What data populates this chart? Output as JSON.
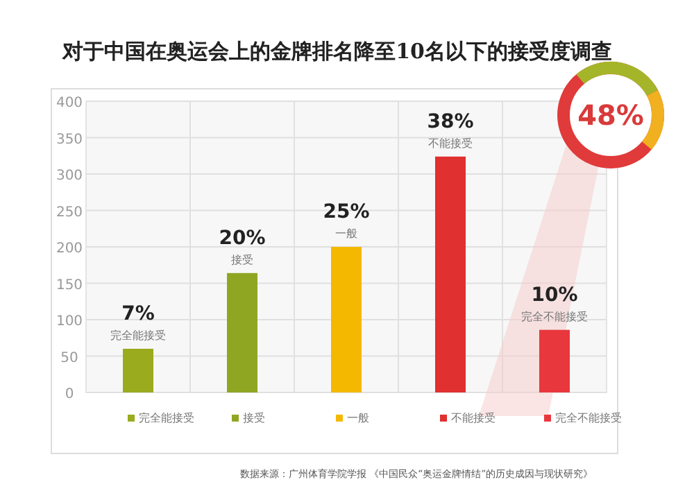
{
  "chart_data": {
    "type": "bar",
    "title": "对于中国在奥运会上的金牌排名降至10名以下的接受度调查",
    "categories": [
      null,
      null,
      null,
      null,
      null
    ],
    "series": [
      {
        "name": "完全能接受",
        "color": "#9aab1e",
        "values": [
          60,
          null,
          null,
          null,
          null
        ]
      },
      {
        "name": "接受",
        "color": "#8fa622",
        "values": [
          null,
          164,
          null,
          null,
          null
        ]
      },
      {
        "name": "一般",
        "color": "#f5b800",
        "values": [
          null,
          null,
          200,
          null,
          null
        ]
      },
      {
        "name": "不能接受",
        "color": "#e03030",
        "values": [
          null,
          null,
          null,
          324,
          null
        ]
      },
      {
        "name": "完全不能接受",
        "color": "#e8383d",
        "values": [
          null,
          null,
          null,
          null,
          86
        ]
      }
    ],
    "ylim": [
      0,
      400
    ],
    "yticks": [
      0,
      50,
      100,
      150,
      200,
      250,
      300,
      350,
      400
    ],
    "grid": true,
    "legend": "bottom",
    "annotations": [
      "48%",
      "数据来源：广州体育学院学报 《中国民众“奥运金牌情结”的历史成因与现状研究》",
      {
        "text": "7%",
        "y": 60
      },
      {
        "text": "20%",
        "y": 164
      },
      {
        "text": "25%",
        "y": 200
      },
      {
        "text": "38%",
        "y": 324
      },
      {
        "text": "10%",
        "y": 86
      }
    ]
  }
}
